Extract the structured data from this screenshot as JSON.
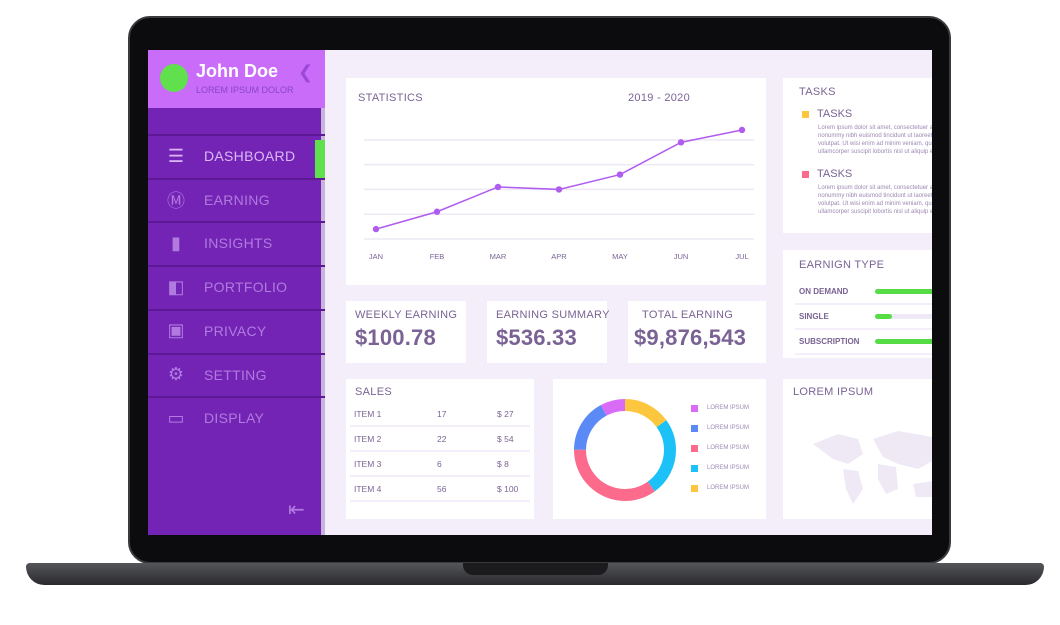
{
  "user": {
    "name": "John Doe",
    "subtitle": "LOREM IPSUM DOLOR"
  },
  "sidebar": {
    "items": [
      {
        "label": "DASHBOARD",
        "icon": "menu-icon",
        "active": true
      },
      {
        "label": "EARNING",
        "icon": "dollar-icon"
      },
      {
        "label": "INSIGHTS",
        "icon": "bar-chart-icon"
      },
      {
        "label": "PORTFOLIO",
        "icon": "portfolio-icon"
      },
      {
        "label": "PRIVACY",
        "icon": "lock-icon"
      },
      {
        "label": "SETTING",
        "icon": "gear-icon"
      },
      {
        "label": "DISPLAY",
        "icon": "monitor-icon"
      }
    ]
  },
  "statistics": {
    "title": "STATISTICS",
    "period": "2019 - 2020"
  },
  "chart_data": {
    "type": "line",
    "categories": [
      "JAN",
      "FEB",
      "MAR",
      "APR",
      "MAY",
      "JUN",
      "JUL"
    ],
    "values": [
      0.4,
      1.1,
      2.1,
      2.0,
      2.6,
      3.9,
      4.4
    ],
    "ylim": [
      0,
      4.6
    ],
    "grid": true,
    "color": "#b05cf0"
  },
  "kpis": [
    {
      "label": "WEEKLY EARNING",
      "value": "$100.78"
    },
    {
      "label": "EARNING SUMMARY",
      "value": "$536.33"
    },
    {
      "label": "TOTAL EARNING",
      "value": "$9,876,543"
    }
  ],
  "tasks": {
    "title": "TASKS",
    "items": [
      {
        "label": "TASKS",
        "color": "#fdc63f",
        "text": "Lorem ipsum dolor sit amet, consectetuer adipiscing elit, sed diam nonummy nibh euismod tincidunt ut laoreet dolore magna aliquam erat volutpat. Ut wisi enim ad minim veniam, quis nostrud exerci tation ullamcorper suscipit lobortis nisl ut aliquip ex ea commodo consequat."
      },
      {
        "label": "TASKS",
        "color": "#fc6a8c",
        "text": "Lorem ipsum dolor sit amet, consectetuer adipiscing elit, sed diam nonummy nibh euismod tincidunt ut laoreet dolore magna aliquam erat volutpat. Ut wisi enim ad minim veniam, quis nostrud exerci tation ullamcorper suscipit lobortis nisl ut aliquip ex ea commodo consequat."
      }
    ]
  },
  "earning_type": {
    "title": "EARNIGN TYPE",
    "items": [
      {
        "label": "ON DEMAND",
        "percent": 90
      },
      {
        "label": "SINGLE",
        "percent": 25
      },
      {
        "label": "SUBSCRIPTION",
        "percent": 90
      }
    ]
  },
  "sales": {
    "title": "SALES",
    "rows": [
      [
        "ITEM 1",
        "17",
        "$ 27"
      ],
      [
        "ITEM 2",
        "22",
        "$ 54"
      ],
      [
        "ITEM 3",
        "6",
        "$ 8"
      ],
      [
        "ITEM 4",
        "56",
        "$ 100"
      ]
    ]
  },
  "donut": {
    "slices": [
      {
        "label": "LOREM IPSUM",
        "color": "#d86cf7",
        "value": 8
      },
      {
        "label": "LOREM IPSUM",
        "color": "#5b8af7",
        "value": 17
      },
      {
        "label": "LOREM IPSUM",
        "color": "#fc6a8c",
        "value": 35
      },
      {
        "label": "LOREM IPSUM",
        "color": "#1cc1f7",
        "value": 25
      },
      {
        "label": "LOREM IPSUM",
        "color": "#fdc63f",
        "value": 15
      }
    ]
  },
  "map": {
    "title": "LOREM IPSUM"
  }
}
